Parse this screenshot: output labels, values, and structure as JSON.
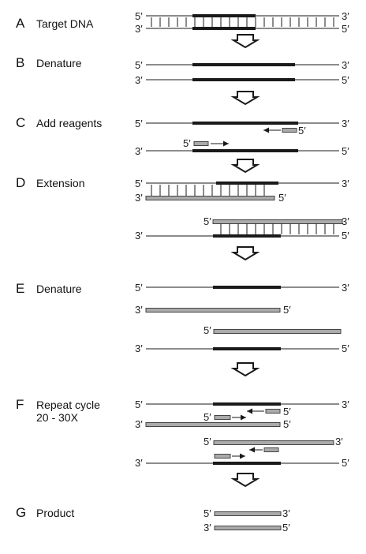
{
  "steps": [
    {
      "letter": "A",
      "label": "Target DNA"
    },
    {
      "letter": "B",
      "label": "Denature"
    },
    {
      "letter": "C",
      "label": "Add reagents"
    },
    {
      "letter": "D",
      "label": "Extension"
    },
    {
      "letter": "E",
      "label": "Denature"
    },
    {
      "letter": "F",
      "label": "Repeat cycle",
      "label2": "20 - 30X"
    },
    {
      "letter": "G",
      "label": "Product"
    }
  ],
  "ends": {
    "five": "5′",
    "three": "3′"
  },
  "colors": {
    "strand": "#1a1a1a",
    "primer_fill": "#aaaaaa",
    "primer_edge": "#444444",
    "arrow_fill": "#ffffff"
  }
}
